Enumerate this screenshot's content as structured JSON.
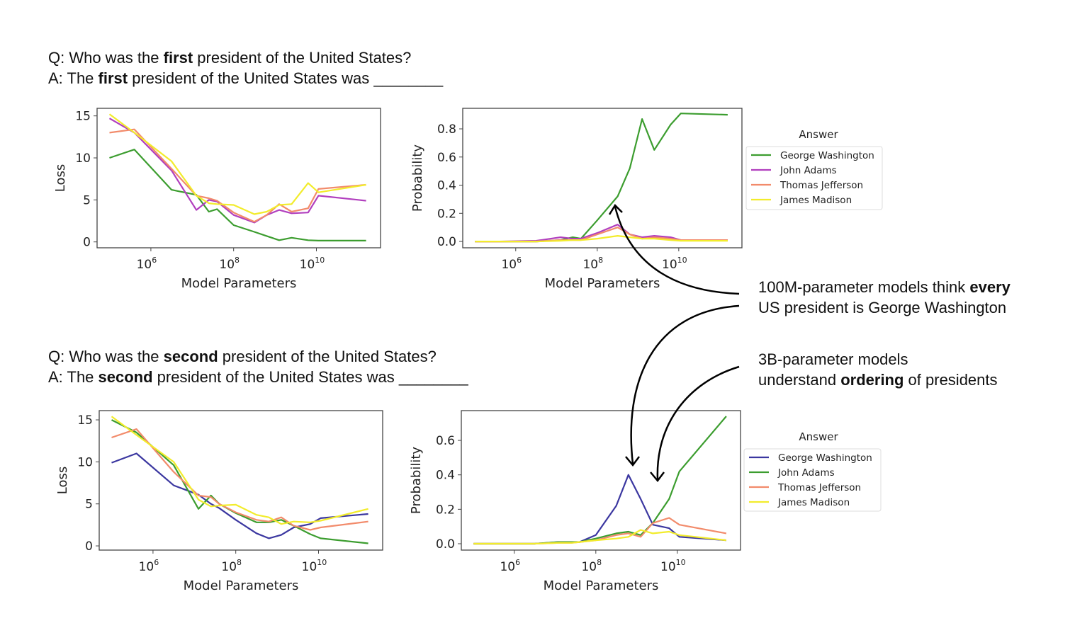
{
  "questions": [
    {
      "q_prefix": "Q: Who was the ",
      "q_bold": "first",
      "q_suffix": " president of the United States?",
      "a_prefix": "A: The ",
      "a_bold": "first",
      "a_suffix": " president of the United States was ________"
    },
    {
      "q_prefix": "Q: Who was the ",
      "q_bold": "second",
      "q_suffix": " president of the United States?",
      "a_prefix": "A: The ",
      "a_bold": "second",
      "a_suffix": " president of the United States was ________"
    }
  ],
  "annotations": [
    {
      "line1_prefix": "100M-parameter models think ",
      "line1_bold": "every",
      "line2": "US president is George Washington"
    },
    {
      "line1": "3B-parameter models",
      "line2_prefix": "understand ",
      "line2_bold": "ordering",
      "line2_suffix": " of presidents"
    }
  ],
  "colors": {
    "george_first": "#3c9d2f",
    "john_first": "#b13fbe",
    "thomas": "#f28b6b",
    "james": "#f2ec2c",
    "george_second": "#3b37a0",
    "john_second": "#3c9d2f"
  },
  "chart_data": [
    {
      "type": "line",
      "title": "",
      "xlabel": "Model Parameters",
      "ylabel": "Loss",
      "xscale": "log10",
      "xlim_log10": [
        4.7,
        11.55
      ],
      "ylim": [
        -0.7,
        15.9
      ],
      "xticks": [
        {
          "v": 6,
          "label": "10",
          "exp": "6"
        },
        {
          "v": 8,
          "label": "10",
          "exp": "8"
        },
        {
          "v": 10,
          "label": "10",
          "exp": "10"
        }
      ],
      "yticks": [
        0,
        5,
        10,
        15
      ],
      "x_log10": [
        5.0,
        5.6,
        6.5,
        7.1,
        7.4,
        7.6,
        8.0,
        8.5,
        8.8,
        9.1,
        9.4,
        9.8,
        10.05,
        11.2
      ],
      "series": [
        {
          "name": "George Washington",
          "color": "#3c9d2f",
          "values": [
            10,
            11,
            6.2,
            5.6,
            3.6,
            3.9,
            2.0,
            1.2,
            0.7,
            0.2,
            0.5,
            0.2,
            0.15,
            0.15
          ]
        },
        {
          "name": "John Adams",
          "color": "#b13fbe",
          "values": [
            14.7,
            13,
            8.5,
            3.8,
            5.0,
            4.8,
            3.2,
            2.3,
            3.2,
            3.8,
            3.4,
            3.5,
            5.5,
            4.9
          ]
        },
        {
          "name": "Thomas Jefferson",
          "color": "#f28b6b",
          "values": [
            13,
            13.4,
            8.7,
            5.5,
            5.2,
            4.9,
            3.5,
            2.4,
            3.2,
            4.5,
            3.6,
            4.0,
            6.3,
            6.8
          ]
        },
        {
          "name": "James Madison",
          "color": "#f2ec2c",
          "values": [
            15.2,
            13,
            9.6,
            5.5,
            4.6,
            4.5,
            4.4,
            3.3,
            3.6,
            4.4,
            4.5,
            7.0,
            5.9,
            6.8
          ]
        }
      ]
    },
    {
      "type": "line",
      "title": "",
      "xlabel": "Model Parameters",
      "ylabel": "Probability",
      "xscale": "log10",
      "xlim_log10": [
        4.7,
        11.55
      ],
      "ylim": [
        -0.045,
        0.946
      ],
      "xticks": [
        {
          "v": 6,
          "label": "10",
          "exp": "6"
        },
        {
          "v": 8,
          "label": "10",
          "exp": "8"
        },
        {
          "v": 10,
          "label": "10",
          "exp": "10"
        }
      ],
      "yticks": [
        "0.0",
        "0.2",
        "0.4",
        "0.6",
        "0.8"
      ],
      "legend_title": "Answer",
      "legend_position": "right",
      "x_log10": [
        5.0,
        5.6,
        6.5,
        7.1,
        7.4,
        7.6,
        8.0,
        8.5,
        8.8,
        9.1,
        9.4,
        9.8,
        10.05,
        11.2
      ],
      "series": [
        {
          "name": "George Washington",
          "color": "#3c9d2f",
          "values": [
            0,
            0,
            0,
            0.01,
            0.03,
            0.02,
            0.15,
            0.32,
            0.52,
            0.87,
            0.65,
            0.83,
            0.91,
            0.9
          ]
        },
        {
          "name": "John Adams",
          "color": "#b13fbe",
          "values": [
            0,
            0,
            0.005,
            0.03,
            0.02,
            0.02,
            0.06,
            0.12,
            0.05,
            0.03,
            0.04,
            0.03,
            0.01,
            0.01
          ]
        },
        {
          "name": "Thomas Jefferson",
          "color": "#f28b6b",
          "values": [
            0,
            0,
            0,
            0.01,
            0.01,
            0.01,
            0.05,
            0.1,
            0.05,
            0.02,
            0.03,
            0.02,
            0.01,
            0.01
          ]
        },
        {
          "name": "James Madison",
          "color": "#f2ec2c",
          "values": [
            0,
            0,
            0,
            0.005,
            0.01,
            0.01,
            0.02,
            0.04,
            0.03,
            0.02,
            0.02,
            0.01,
            0.005,
            0.005
          ]
        }
      ]
    },
    {
      "type": "line",
      "title": "",
      "xlabel": "Model Parameters",
      "ylabel": "Loss",
      "xscale": "log10",
      "xlim_log10": [
        4.7,
        11.55
      ],
      "ylim": [
        -0.5,
        16.1
      ],
      "xticks": [
        {
          "v": 6,
          "label": "10",
          "exp": "6"
        },
        {
          "v": 8,
          "label": "10",
          "exp": "8"
        },
        {
          "v": 10,
          "label": "10",
          "exp": "10"
        }
      ],
      "yticks": [
        0,
        5,
        10,
        15
      ],
      "x_log10": [
        5.0,
        5.6,
        6.5,
        7.1,
        7.4,
        7.6,
        8.0,
        8.5,
        8.8,
        9.1,
        9.4,
        9.8,
        10.05,
        11.2
      ],
      "series": [
        {
          "name": "George Washington",
          "color": "#3b37a0",
          "values": [
            9.9,
            11,
            7.2,
            6.1,
            5.0,
            4.5,
            3.1,
            1.5,
            0.9,
            1.3,
            2.2,
            2.6,
            3.3,
            3.8
          ]
        },
        {
          "name": "John Adams",
          "color": "#3c9d2f",
          "values": [
            15,
            13.5,
            9.6,
            4.4,
            6.0,
            5.0,
            3.9,
            2.8,
            2.8,
            3.1,
            2.4,
            1.4,
            0.9,
            0.3
          ]
        },
        {
          "name": "Thomas Jefferson",
          "color": "#f28b6b",
          "values": [
            12.9,
            13.9,
            8.8,
            6.0,
            5.8,
            5.0,
            4.0,
            3.1,
            2.9,
            3.4,
            2.4,
            1.9,
            2.2,
            2.9
          ]
        },
        {
          "name": "James Madison",
          "color": "#f2ec2c",
          "values": [
            15.4,
            13.2,
            10.0,
            5.5,
            4.7,
            4.8,
            4.9,
            3.7,
            3.4,
            2.6,
            2.9,
            2.8,
            3.0,
            4.4
          ]
        }
      ]
    },
    {
      "type": "line",
      "title": "",
      "xlabel": "Model Parameters",
      "ylabel": "Probability",
      "xscale": "log10",
      "xlim_log10": [
        4.7,
        11.55
      ],
      "ylim": [
        -0.037,
        0.773
      ],
      "xticks": [
        {
          "v": 6,
          "label": "10",
          "exp": "6"
        },
        {
          "v": 8,
          "label": "10",
          "exp": "8"
        },
        {
          "v": 10,
          "label": "10",
          "exp": "10"
        }
      ],
      "yticks": [
        "0.0",
        "0.2",
        "0.4",
        "0.6"
      ],
      "legend_title": "Answer",
      "legend_position": "right",
      "x_log10": [
        5.0,
        5.6,
        6.5,
        7.1,
        7.4,
        7.6,
        8.0,
        8.5,
        8.8,
        9.1,
        9.4,
        9.8,
        10.05,
        11.2
      ],
      "series": [
        {
          "name": "George Washington",
          "color": "#3b37a0",
          "values": [
            0,
            0,
            0,
            0.01,
            0.01,
            0.01,
            0.05,
            0.22,
            0.4,
            0.26,
            0.11,
            0.09,
            0.04,
            0.02
          ]
        },
        {
          "name": "John Adams",
          "color": "#3c9d2f",
          "values": [
            0,
            0,
            0,
            0.01,
            0.01,
            0.01,
            0.03,
            0.06,
            0.07,
            0.05,
            0.12,
            0.26,
            0.42,
            0.74
          ]
        },
        {
          "name": "Thomas Jefferson",
          "color": "#f28b6b",
          "values": [
            0,
            0,
            0,
            0.005,
            0.005,
            0.01,
            0.02,
            0.05,
            0.06,
            0.04,
            0.12,
            0.15,
            0.11,
            0.06
          ]
        },
        {
          "name": "James Madison",
          "color": "#f2ec2c",
          "values": [
            0,
            0,
            0,
            0.005,
            0.005,
            0.01,
            0.02,
            0.03,
            0.04,
            0.08,
            0.06,
            0.07,
            0.05,
            0.02
          ]
        }
      ]
    }
  ]
}
